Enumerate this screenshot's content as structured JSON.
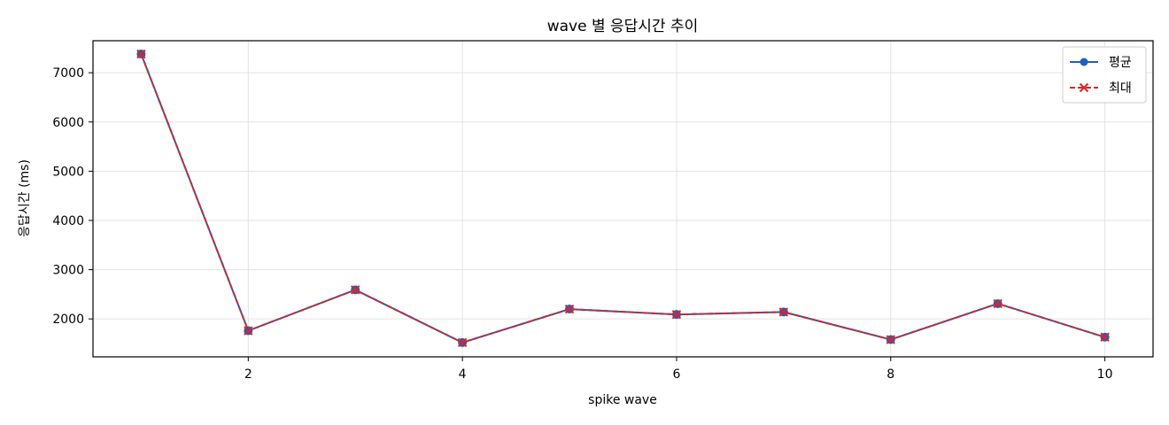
{
  "chart_data": {
    "type": "line",
    "title": "wave 별 응답시간 추이",
    "xlabel": "spike wave",
    "ylabel": "응답시간 (ms)",
    "x": [
      1,
      2,
      3,
      4,
      5,
      6,
      7,
      8,
      9,
      10
    ],
    "xlim": [
      0.55,
      10.45
    ],
    "ylim": [
      1230,
      7650
    ],
    "xticks": [
      2,
      4,
      6,
      8,
      10
    ],
    "yticks": [
      2000,
      3000,
      4000,
      5000,
      6000,
      7000
    ],
    "grid": true,
    "legend_position": "top-right",
    "series": [
      {
        "name": "평균",
        "values": [
          7380,
          1760,
          2590,
          1520,
          2200,
          2090,
          2140,
          1580,
          2310,
          1630
        ],
        "color": "#1f5fbf",
        "marker": "circle",
        "linestyle": "solid"
      },
      {
        "name": "최대",
        "values": [
          7380,
          1760,
          2590,
          1520,
          2200,
          2090,
          2140,
          1580,
          2310,
          1630
        ],
        "color": "#d62728",
        "marker": "x",
        "linestyle": "dashed"
      }
    ]
  }
}
